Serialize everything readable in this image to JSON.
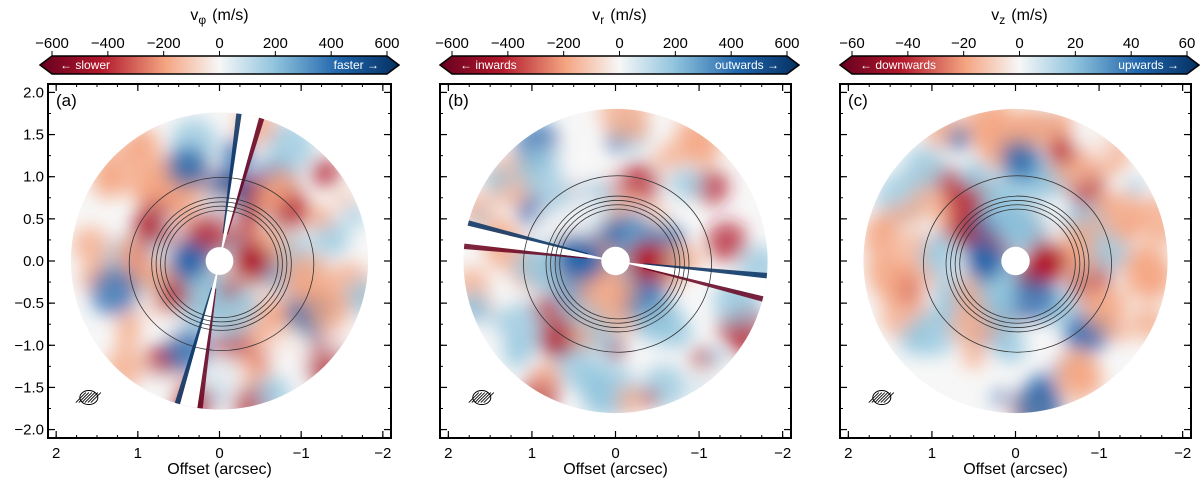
{
  "colors": {
    "dark_red": "#67001f",
    "red": "#b2182b",
    "light_red": "#f4a582",
    "white": "#f7f7f7",
    "light_blue": "#92c5de",
    "blue": "#2166ac",
    "dark_blue": "#053061",
    "contour": "#333333"
  },
  "chart_data": [
    {
      "type": "heatmap",
      "panel_label": "(a)",
      "colorbar": {
        "title": "v",
        "title_sub": "φ",
        "title_unit": "(m/s)",
        "ticks": [
          "−600",
          "−400",
          "−200",
          "0",
          "200",
          "400",
          "600"
        ],
        "range": [
          -600,
          600
        ],
        "left_label": "← slower",
        "right_label": "faster →"
      },
      "xlabel": "Offset (arcsec)",
      "x_ticks": [
        "2",
        "1",
        "0",
        "−1",
        "−2"
      ],
      "y_ticks": [
        "2.0",
        "1.5",
        "1.0",
        "0.5",
        "0.0",
        "−0.5",
        "−1.0",
        "−1.5",
        "−2.0"
      ],
      "xlim": [
        2.1,
        -2.1
      ],
      "ylim": [
        -2.1,
        2.1
      ],
      "show_y_ticklabels": true,
      "disk_outer_radius_arcsec": 1.82,
      "disk_inner_radius_arcsec": 0.17,
      "masked_wedge_angle_deg": 78
    },
    {
      "type": "heatmap",
      "panel_label": "(b)",
      "colorbar": {
        "title": "v",
        "title_sub": "r",
        "title_unit": "(m/s)",
        "ticks": [
          "−600",
          "−400",
          "−200",
          "0",
          "200",
          "400",
          "600"
        ],
        "range": [
          -600,
          600
        ],
        "left_label": "← inwards",
        "right_label": "outwards →"
      },
      "xlabel": "Offset (arcsec)",
      "x_ticks": [
        "2",
        "1",
        "0",
        "−1",
        "−2"
      ],
      "xlim": [
        2.1,
        -2.1
      ],
      "ylim": [
        -2.1,
        2.1
      ],
      "show_y_ticklabels": false,
      "disk_outer_radius_arcsec": 1.82,
      "disk_inner_radius_arcsec": 0.17,
      "masked_wedge_angle_deg": -10
    },
    {
      "type": "heatmap",
      "panel_label": "(c)",
      "colorbar": {
        "title": "v",
        "title_sub": "z",
        "title_unit": "(m/s)",
        "ticks": [
          "−60",
          "−40",
          "−20",
          "0",
          "20",
          "40",
          "60"
        ],
        "range": [
          -60,
          60
        ],
        "left_label": "← downwards",
        "right_label": "upwards →"
      },
      "xlabel": "Offset (arcsec)",
      "x_ticks": [
        "2",
        "1",
        "0",
        "−1",
        "−2"
      ],
      "xlim": [
        2.1,
        -2.1
      ],
      "ylim": [
        -2.1,
        2.1
      ],
      "show_y_ticklabels": false,
      "disk_outer_radius_arcsec": 1.82,
      "disk_inner_radius_arcsec": 0.17,
      "masked_wedge_angle_deg": null
    }
  ]
}
